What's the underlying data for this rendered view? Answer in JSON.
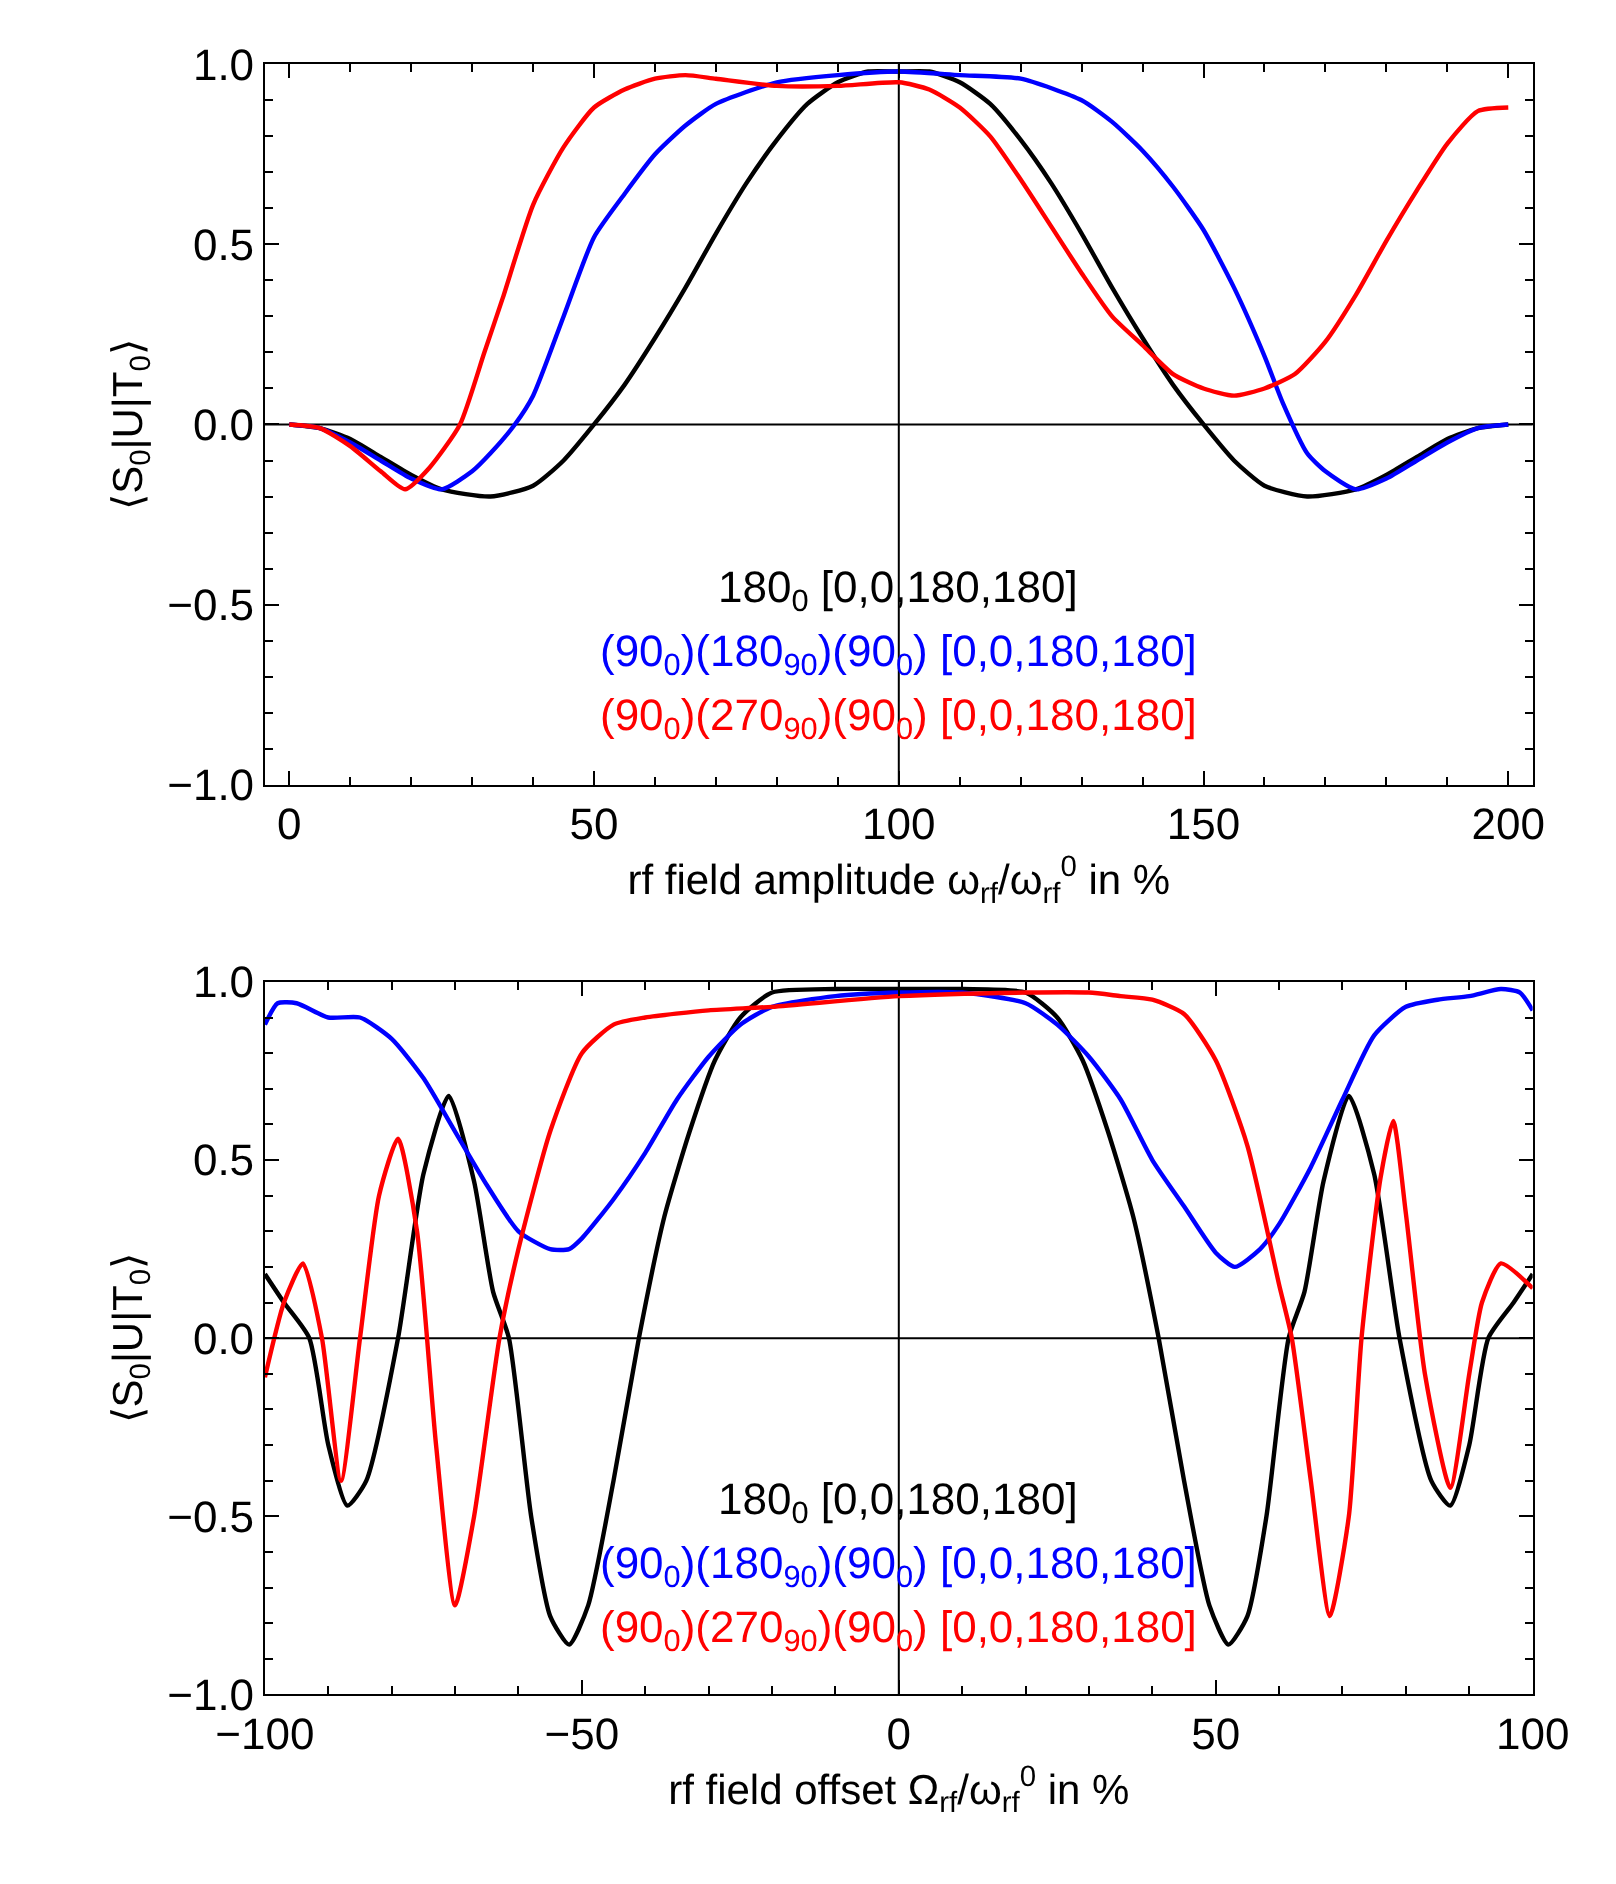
{
  "chart_data": [
    {
      "type": "line",
      "xlabel": "rf field amplitude ω$_{rf}$/ω$_{rf}$$^{0}$ in %",
      "ylabel": "⟨S$_{0}$|U|T$_{0}$⟩",
      "xlim": [
        -4,
        204
      ],
      "xticks": [
        0,
        50,
        100,
        150,
        200
      ],
      "ylim": [
        -1.0,
        1.0
      ],
      "yticks": [
        {
          "value": -1.0,
          "label": "−1.0"
        },
        {
          "value": -0.5,
          "label": "−0.5"
        },
        {
          "value": 0,
          "label": "0.0"
        },
        {
          "value": 0.5,
          "label": "0.5"
        },
        {
          "value": 1.0,
          "label": "1.0"
        }
      ],
      "ref_lines": [
        {
          "axis": "y",
          "value": 0,
          "color": "#000000"
        },
        {
          "axis": "x",
          "value": 100,
          "color": "#000000"
        }
      ],
      "series": [
        {
          "name": "180$_{0}$ [0,0,180,180]",
          "color": "#000000",
          "x": [
            0,
            5,
            10,
            15,
            20,
            25,
            33,
            40,
            45,
            50,
            55,
            60,
            65,
            70,
            75,
            80,
            85,
            90,
            95,
            100,
            105,
            110,
            115,
            120,
            125,
            130,
            135,
            140,
            145,
            150,
            155,
            160,
            167,
            175,
            180,
            185,
            190,
            195,
            200
          ],
          "values": [
            0,
            -0.01,
            -0.04,
            -0.09,
            -0.14,
            -0.18,
            -0.2,
            -0.17,
            -0.1,
            0,
            0.11,
            0.24,
            0.38,
            0.53,
            0.67,
            0.79,
            0.89,
            0.95,
            0.98,
            0.98,
            0.98,
            0.95,
            0.89,
            0.79,
            0.67,
            0.53,
            0.38,
            0.24,
            0.11,
            0,
            -0.1,
            -0.17,
            -0.2,
            -0.18,
            -0.14,
            -0.09,
            -0.04,
            -0.01,
            0
          ]
        },
        {
          "name": "(90$_{0}$)(180$_{90}$)(90$_{0}$) [0,0,180,180]",
          "color": "#0000ff",
          "x": [
            0,
            5,
            10,
            15,
            20,
            25,
            30,
            33,
            37,
            40,
            45,
            50,
            55,
            60,
            65,
            70,
            80,
            90,
            100,
            110,
            120,
            130,
            135,
            140,
            145,
            150,
            155,
            160,
            163,
            167,
            170,
            175,
            180,
            185,
            190,
            195,
            200
          ],
          "values": [
            0,
            -0.01,
            -0.05,
            -0.1,
            -0.15,
            -0.18,
            -0.13,
            -0.08,
            0,
            0.08,
            0.3,
            0.52,
            0.64,
            0.75,
            0.83,
            0.89,
            0.95,
            0.97,
            0.98,
            0.97,
            0.96,
            0.9,
            0.84,
            0.76,
            0.66,
            0.54,
            0.38,
            0.19,
            0.06,
            -0.08,
            -0.13,
            -0.18,
            -0.15,
            -0.1,
            -0.05,
            -0.01,
            0
          ]
        },
        {
          "name": "(90$_{0}$)(270$_{90}$)(90$_{0}$) [0,0,180,180]",
          "color": "#ff0000",
          "x": [
            0,
            5,
            10,
            15,
            19,
            23,
            28,
            32,
            35,
            40,
            45,
            50,
            55,
            60,
            65,
            70,
            80,
            90,
            100,
            105,
            110,
            115,
            120,
            125,
            130,
            135,
            140,
            145,
            150,
            155,
            160,
            165,
            170,
            175,
            180,
            185,
            190,
            195,
            200
          ],
          "values": [
            0,
            -0.01,
            -0.06,
            -0.13,
            -0.18,
            -0.12,
            0,
            0.2,
            0.35,
            0.61,
            0.77,
            0.88,
            0.93,
            0.96,
            0.97,
            0.96,
            0.94,
            0.94,
            0.95,
            0.93,
            0.88,
            0.8,
            0.68,
            0.55,
            0.42,
            0.3,
            0.22,
            0.14,
            0.1,
            0.08,
            0.1,
            0.14,
            0.23,
            0.36,
            0.51,
            0.65,
            0.78,
            0.87,
            0.88
          ]
        }
      ]
    },
    {
      "type": "line",
      "xlabel": "rf field offset Ω$_{rf}$/ω$_{rf}$$^{0}$ in %",
      "ylabel": "⟨S$_{0}$|U|T$_{0}$⟩",
      "xlim": [
        -100,
        100
      ],
      "xticks": [
        {
          "value": -100,
          "label": "−100"
        },
        {
          "value": -50,
          "label": "−50"
        },
        0,
        50,
        100
      ],
      "ylim": [
        -1.0,
        1.0
      ],
      "yticks": [
        {
          "value": -1.0,
          "label": "−1.0"
        },
        {
          "value": -0.5,
          "label": "−0.5"
        },
        {
          "value": 0,
          "label": "0.0"
        },
        {
          "value": 0.5,
          "label": "0.5"
        },
        {
          "value": 1.0,
          "label": "1.0"
        }
      ],
      "ref_lines": [
        {
          "axis": "y",
          "value": 0,
          "color": "#000000"
        },
        {
          "axis": "x",
          "value": 0,
          "color": "#000000"
        }
      ],
      "series": [
        {
          "name": "180$_{0}$ [0,0,180,180]",
          "color": "#000000",
          "x": [
            -100,
            -97,
            -93,
            -90,
            -87,
            -84,
            -79,
            -75,
            -71,
            -67,
            -64,
            -61.5,
            -58,
            -55,
            -52,
            -49,
            -45,
            -41,
            -37,
            -33,
            -29,
            -25,
            -20,
            -10,
            0,
            10,
            20,
            25,
            29,
            33,
            37,
            41,
            45,
            49,
            52,
            55,
            58,
            61.5,
            64,
            67,
            71,
            75,
            79,
            84,
            87,
            90,
            93,
            97,
            100
          ],
          "values": [
            0.18,
            0.1,
            0,
            -0.3,
            -0.47,
            -0.4,
            0,
            0.46,
            0.68,
            0.44,
            0.13,
            0,
            -0.5,
            -0.78,
            -0.86,
            -0.75,
            -0.4,
            0,
            0.34,
            0.58,
            0.78,
            0.9,
            0.97,
            0.98,
            0.98,
            0.98,
            0.97,
            0.9,
            0.78,
            0.58,
            0.34,
            0,
            -0.4,
            -0.75,
            -0.86,
            -0.78,
            -0.5,
            0,
            0.13,
            0.44,
            0.68,
            0.46,
            0,
            -0.4,
            -0.47,
            -0.3,
            0,
            0.1,
            0.18
          ]
        },
        {
          "name": "(90$_{0}$)(180$_{90}$)(90$_{0}$) [0,0,180,180]",
          "color": "#0000ff",
          "x": [
            -100,
            -98,
            -95,
            -90,
            -85,
            -80,
            -75,
            -70,
            -65,
            -60,
            -55,
            -52,
            -50,
            -45,
            -40,
            -35,
            -30,
            -25,
            -20,
            -10,
            0,
            10,
            20,
            25,
            30,
            35,
            40,
            45,
            50,
            53,
            57,
            60,
            65,
            70,
            75,
            80,
            85,
            90,
            95,
            98,
            100
          ],
          "values": [
            0.88,
            0.94,
            0.94,
            0.9,
            0.9,
            0.84,
            0.73,
            0.58,
            0.43,
            0.3,
            0.25,
            0.25,
            0.28,
            0.39,
            0.52,
            0.67,
            0.79,
            0.88,
            0.93,
            0.96,
            0.97,
            0.97,
            0.94,
            0.88,
            0.79,
            0.67,
            0.5,
            0.37,
            0.24,
            0.2,
            0.25,
            0.32,
            0.48,
            0.67,
            0.85,
            0.93,
            0.95,
            0.96,
            0.98,
            0.97,
            0.92
          ]
        },
        {
          "name": "(90$_{0}$)(270$_{90}$)(90$_{0}$) [0,0,180,180]",
          "color": "#ff0000",
          "x": [
            -100,
            -97,
            -94,
            -91,
            -88,
            -85,
            -82,
            -79,
            -76,
            -73,
            -70,
            -67,
            -63,
            -60,
            -55,
            -50,
            -45,
            -40,
            -30,
            -20,
            0,
            20,
            30,
            35,
            40,
            45,
            50,
            55,
            60,
            62,
            65,
            68,
            71,
            73,
            76,
            78,
            80,
            83,
            87,
            90,
            92,
            95,
            100
          ],
          "values": [
            -0.11,
            0.1,
            0.21,
            0,
            -0.4,
            0,
            0.4,
            0.56,
            0.3,
            -0.3,
            -0.75,
            -0.5,
            0,
            0.25,
            0.58,
            0.8,
            0.88,
            0.9,
            0.92,
            0.93,
            0.96,
            0.97,
            0.97,
            0.96,
            0.95,
            0.91,
            0.78,
            0.54,
            0.15,
            0,
            -0.4,
            -0.78,
            -0.5,
            0,
            0.45,
            0.61,
            0.35,
            -0.1,
            -0.42,
            -0.1,
            0.1,
            0.21,
            0.14
          ]
        }
      ]
    }
  ]
}
